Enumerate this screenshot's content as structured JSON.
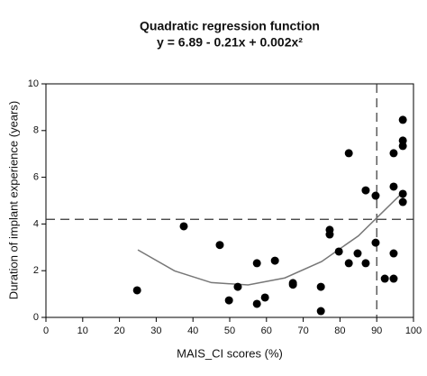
{
  "chart_data": {
    "type": "scatter",
    "title": "Quadratic regression function",
    "subtitle": "y = 6.89 - 0.21x + 0.002x²",
    "x_label": "MAIS_CI scores (%)",
    "y_label": "Duration of implant experience (years)",
    "xlim": [
      0,
      100
    ],
    "ylim": [
      0,
      10
    ],
    "xticks": [
      0,
      10,
      20,
      30,
      40,
      50,
      60,
      70,
      80,
      90,
      100
    ],
    "yticks": [
      0,
      2,
      4,
      6,
      8,
      10
    ],
    "color": "#000000",
    "x": [
      24.8,
      37.5,
      47.3,
      49.8,
      52.2,
      57.4,
      57.4,
      59.6,
      62.3,
      67.2,
      67.2,
      74.8,
      74.8,
      77.2,
      77.2,
      79.7,
      82.4,
      82.4,
      84.8,
      87.0,
      87.0,
      89.7,
      89.7,
      92.2,
      94.6,
      94.6,
      94.6,
      94.6,
      97.1,
      97.1,
      97.1,
      97.1,
      97.1
    ],
    "values": [
      1.16,
      3.9,
      3.1,
      0.73,
      1.31,
      2.32,
      0.58,
      0.85,
      2.43,
      1.47,
      1.4,
      1.31,
      0.27,
      3.75,
      3.55,
      2.82,
      7.03,
      2.32,
      2.74,
      2.32,
      5.44,
      5.21,
      3.2,
      1.66,
      1.66,
      2.74,
      7.03,
      5.6,
      8.46,
      7.57,
      7.34,
      5.29,
      4.94
    ],
    "curve": {
      "color": "#777777",
      "x": [
        25,
        35,
        45,
        55,
        65,
        75,
        85,
        97
      ],
      "values": [
        2.89,
        1.99,
        1.49,
        1.39,
        1.69,
        2.39,
        3.49,
        5.34
      ]
    },
    "hline": 4.2,
    "vline": 90
  }
}
